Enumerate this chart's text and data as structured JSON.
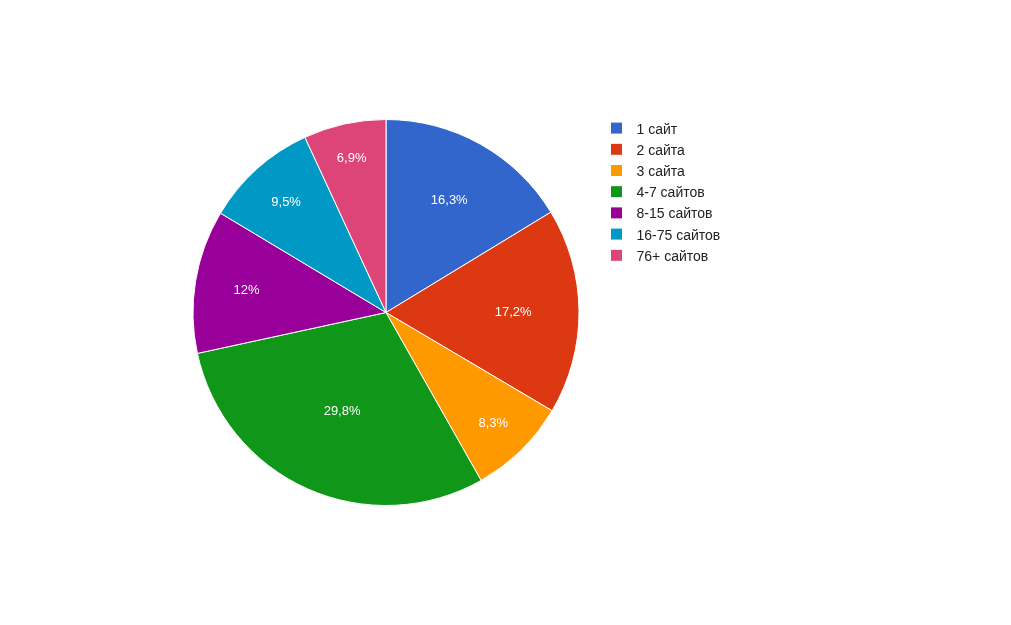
{
  "chart_data": {
    "type": "pie",
    "categories": [
      "1 сайт",
      "2 сайта",
      "3 сайта",
      "4-7 сайтов",
      "8-15 сайтов",
      "16-75 сайтов",
      "76+ сайтов"
    ],
    "values": [
      16.3,
      17.2,
      8.3,
      29.8,
      12,
      9.5,
      6.9
    ],
    "value_labels": [
      "16,3%",
      "17,2%",
      "8,3%",
      "29,8%",
      "12%",
      "9,5%",
      "6,9%"
    ],
    "colors": [
      "#3366cc",
      "#dc3912",
      "#ff9900",
      "#109618",
      "#990099",
      "#0099c6",
      "#dd4477"
    ],
    "legend": "right"
  }
}
